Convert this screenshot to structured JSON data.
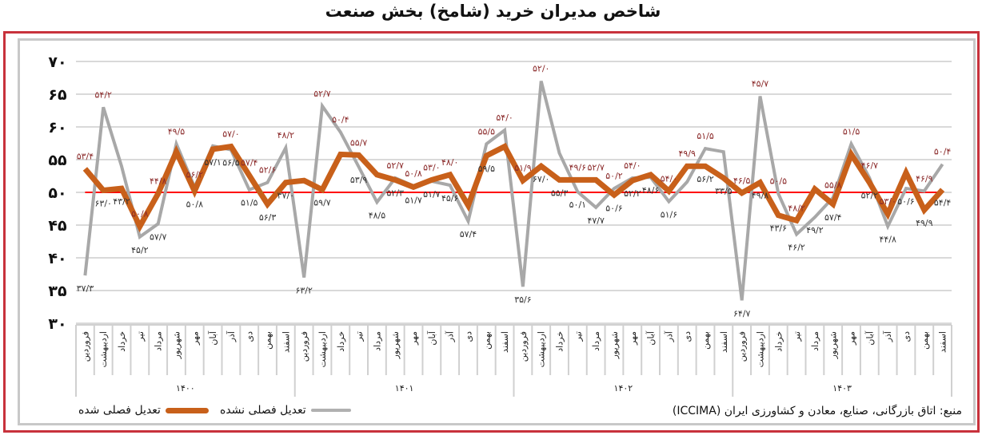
{
  "title": "شاخص مدیران خرید (شامخ) بخش صنعت",
  "legend": {
    "seasonally_adjusted": "تعدیل فصلی شده",
    "not_adjusted": "تعدیل فصلی نشده"
  },
  "source": "منبع: اتاق بازرگانی، صنایع، معادن و کشاورزی ایران (ICCIMA)",
  "colors": {
    "adjusted": "#c8601a",
    "not_adjusted": "#a8a8a8",
    "threshold": "#ff0000",
    "frame": "#c8323c",
    "label_adjusted": "#8b2a2a",
    "label_not_adjusted": "#333333"
  },
  "chart_data": {
    "type": "line",
    "title": "شاخص مدیران خرید (شامخ) بخش صنعت",
    "xlabel": "",
    "ylabel": "",
    "ylim": [
      30,
      70
    ],
    "yticks": [
      "۳۰",
      "۳۵",
      "۴۰",
      "۴۵",
      "۵۰",
      "۵۵",
      "۶۰",
      "۶۵",
      "۷۰"
    ],
    "grid": true,
    "threshold": 50,
    "legend_position": "bottom-left",
    "years": [
      "۱۴۰۰",
      "۱۴۰۱",
      "۱۴۰۲",
      "۱۴۰۳"
    ],
    "months": [
      "فروردین",
      "اردیبهشت",
      "خرداد",
      "تیر",
      "مرداد",
      "شهریور",
      "مهر",
      "آبان",
      "آذر",
      "دی",
      "بهمن",
      "اسفند"
    ],
    "series": [
      {
        "name": "تعدیل فصلی شده",
        "values": [
          53.6,
          50.3,
          50.6,
          44.8,
          49.8,
          56.2,
          50.2,
          56.6,
          57.0,
          52.6,
          48.2,
          51.5,
          51.8,
          50.4,
          55.8,
          55.7,
          52.7,
          51.9,
          50.8,
          51.9,
          52.7,
          48.0,
          55.6,
          57.0,
          51.8,
          54.0,
          51.9,
          51.9,
          51.9,
          49.6,
          51.8,
          52.7,
          50.2,
          54.0,
          54.0,
          52.2,
          49.9,
          51.5,
          46.5,
          45.7,
          50.5,
          48.2,
          55.8,
          51.5,
          46.7,
          53.0,
          47.3,
          50.4
        ]
      },
      {
        "name": "تعدیل فصلی نشده",
        "values": [
          37.3,
          63.0,
          54.0,
          43.2,
          45.2,
          57.4,
          50.8,
          57.1,
          56.5,
          50.4,
          51.5,
          56.8,
          37.0,
          63.2,
          59.2,
          53.9,
          48.5,
          52.2,
          51.0,
          51.7,
          51.1,
          45.6,
          57.4,
          59.5,
          35.6,
          67.0,
          56.0,
          50.1,
          47.7,
          50.6,
          52.2,
          52.3,
          48.6,
          51.6,
          56.7,
          56.2,
          33.5,
          64.7,
          49.8,
          43.6,
          46.2,
          49.2,
          57.4,
          52.2,
          44.8,
          50.6,
          50.2,
          54.3
        ]
      }
    ],
    "data_labels_adjusted": [
      "۵۳/۴",
      "۵۴/۲",
      "۵۰/۸",
      "۴۴/۸",
      "۴۹/۵",
      "۵۶/۲",
      "۵۷/۰",
      "۵۷/۴",
      "۵۲/۶",
      "۴۸/۲",
      "۵۲/۷",
      "۵۰/۴",
      "۵۵/۷",
      "۵۲/۷",
      "۵۰/۸",
      "۵۳/۰",
      "۴۸/۰",
      "۵۵/۵",
      "۵۴/۰",
      "۵۱/۹",
      "۵۲/۰",
      "۴۹/۶",
      "۵۲/۷",
      "۵۰/۲",
      "۵۴/۰",
      "۵۴/۰",
      "۴۹/۹",
      "۵۱/۵",
      "۴۶/۵",
      "۴۵/۷",
      "۵۰/۵",
      "۴۸/۲",
      "۵۵/۸",
      "۵۱/۵",
      "۴۶/۷",
      "۵۳/۰",
      "۴۶/۹",
      "۵۰/۴"
    ],
    "data_labels_not_adjusted": [
      "۳۷/۳",
      "۶۳/۰",
      "۴۳/۲",
      "۴۵/۲",
      "۵۷/۷",
      "۵۰/۸",
      "۵۷/۱",
      "۵۶/۵",
      "۵۱/۵",
      "۵۶/۳",
      "۳۷/۰",
      "۶۳/۲",
      "۵۹/۷",
      "۵۳/۹",
      "۴۸/۵",
      "۵۲/۳",
      "۵۱/۷",
      "۵۱/۷",
      "۴۵/۶",
      "۵۷/۴",
      "۵۹/۵",
      "۳۵/۶",
      "۶۷/۰",
      "۵۵/۳",
      "۵۰/۱",
      "۴۷/۷",
      "۵۰/۶",
      "۵۲/۲",
      "۴۸/۶",
      "۵۱/۶",
      "۵۶/۲",
      "۳۳/۵",
      "۶۴/۷",
      "۴۹/۸",
      "۴۳/۶",
      "۴۶/۲",
      "۴۹/۲",
      "۵۷/۴",
      "۵۲/۲",
      "۴۴/۸",
      "۵۰/۶",
      "۴۹/۹",
      "۵۴/۴"
    ]
  }
}
